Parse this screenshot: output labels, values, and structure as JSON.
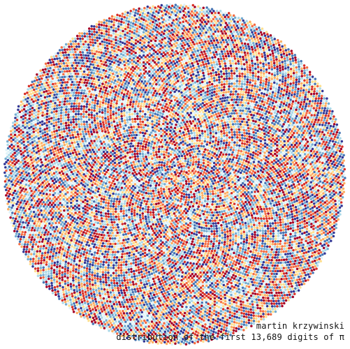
{
  "artwork": {
    "digit_count": 13689,
    "palette": [
      "#313695",
      "#4575b4",
      "#74add1",
      "#abd9e9",
      "#e0f3f8",
      "#fee090",
      "#fdae61",
      "#f46d43",
      "#d73027",
      "#a50026"
    ],
    "shape": "circle",
    "background": "#ffffff"
  },
  "caption": {
    "author": "martin krzywinski",
    "title": "distribution of the first 13,689 digits of π"
  }
}
